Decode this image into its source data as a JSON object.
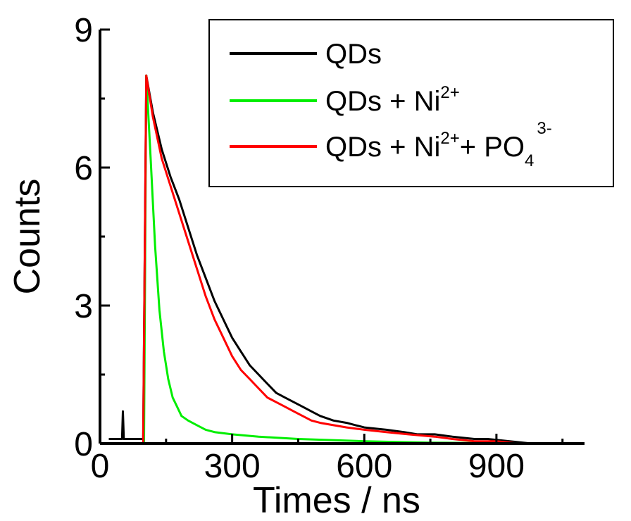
{
  "chart_data": {
    "type": "line",
    "title": "",
    "xlabel": "Times / ns",
    "ylabel": "Counts",
    "xlim": [
      0,
      1100
    ],
    "ylim": [
      0,
      9
    ],
    "x_ticks": [
      0,
      300,
      600,
      900
    ],
    "y_ticks": [
      0,
      3,
      6,
      9
    ],
    "grid": false,
    "legend_position": "top-right",
    "series": [
      {
        "name": "QDs",
        "color": "#000000",
        "x": [
          20,
          50,
          52,
          54,
          98,
          105,
          120,
          140,
          160,
          180,
          200,
          220,
          240,
          260,
          280,
          300,
          320,
          340,
          360,
          380,
          400,
          420,
          440,
          460,
          480,
          500,
          530,
          560,
          580,
          600,
          650,
          690,
          720,
          760,
          800,
          850,
          880,
          930,
          980
        ],
        "y": [
          0.1,
          0.1,
          0.7,
          0.1,
          0.1,
          8.0,
          7.2,
          6.4,
          5.8,
          5.3,
          4.7,
          4.1,
          3.6,
          3.1,
          2.7,
          2.3,
          2.0,
          1.7,
          1.5,
          1.3,
          1.1,
          1.0,
          0.9,
          0.8,
          0.7,
          0.6,
          0.5,
          0.45,
          0.4,
          0.35,
          0.3,
          0.25,
          0.2,
          0.2,
          0.15,
          0.1,
          0.1,
          0.05,
          0.0
        ]
      },
      {
        "name": "QDs + Ni",
        "name_sup": "2+",
        "color": "#00ee00",
        "x": [
          100,
          105,
          115,
          125,
          135,
          145,
          155,
          165,
          175,
          185,
          200,
          220,
          240,
          260,
          300,
          360,
          450,
          600,
          750,
          990
        ],
        "y": [
          0.0,
          8.0,
          6.2,
          4.3,
          2.9,
          2.0,
          1.4,
          1.0,
          0.8,
          0.6,
          0.5,
          0.4,
          0.3,
          0.25,
          0.2,
          0.15,
          0.1,
          0.05,
          0.02,
          0.0
        ]
      },
      {
        "name": "QDs + Ni",
        "name_sup": "2+",
        "name_suffix": "+ PO",
        "name_sub": "4",
        "name_sup2": "3-",
        "color": "#ff0000",
        "x": [
          95,
          98,
          105,
          120,
          140,
          160,
          180,
          200,
          220,
          240,
          260,
          280,
          300,
          320,
          340,
          360,
          380,
          400,
          420,
          440,
          460,
          480,
          500,
          530,
          560,
          600,
          650,
          700,
          760,
          800,
          850,
          900,
          950
        ],
        "y": [
          0.0,
          0.0,
          8.0,
          7.1,
          6.2,
          5.6,
          5.0,
          4.4,
          3.8,
          3.2,
          2.7,
          2.3,
          1.9,
          1.6,
          1.4,
          1.2,
          1.0,
          0.9,
          0.8,
          0.7,
          0.6,
          0.5,
          0.45,
          0.4,
          0.35,
          0.3,
          0.25,
          0.2,
          0.15,
          0.1,
          0.05,
          0.05,
          0.0
        ]
      }
    ]
  }
}
